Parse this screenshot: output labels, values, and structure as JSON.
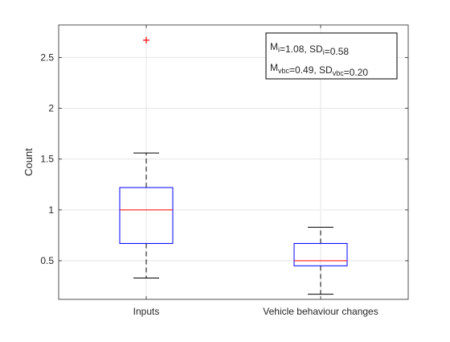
{
  "chart_data": {
    "type": "boxplot",
    "title": "",
    "xlabel": "",
    "ylabel": "Count",
    "ylim": [
      0.12,
      2.82
    ],
    "yticks": [
      0.5,
      1,
      1.5,
      2,
      2.5
    ],
    "ytick_labels": [
      "0.5",
      "1",
      "1.5",
      "2",
      "2.5"
    ],
    "grid": true,
    "categories": [
      "Inputs",
      "Vehicle behaviour changes"
    ],
    "boxes": [
      {
        "min": 0.33,
        "q1": 0.67,
        "median": 1.0,
        "q3": 1.22,
        "max": 1.56,
        "outliers": [
          2.67
        ]
      },
      {
        "min": 0.17,
        "q1": 0.45,
        "median": 0.5,
        "q3": 0.67,
        "max": 0.83,
        "outliers": []
      }
    ],
    "annotation": {
      "position": "top-right",
      "lines": [
        [
          {
            "text": "M",
            "sub": false
          },
          {
            "text": "i",
            "sub": true
          },
          {
            "text": "=1.08, SD",
            "sub": false
          },
          {
            "text": "i",
            "sub": true
          },
          {
            "text": "=0.58",
            "sub": false
          }
        ],
        [
          {
            "text": "M",
            "sub": false
          },
          {
            "text": "vbc",
            "sub": true
          },
          {
            "text": "=0.49, SD",
            "sub": false
          },
          {
            "text": "vbc",
            "sub": true
          },
          {
            "text": "=0.20",
            "sub": false
          }
        ]
      ]
    },
    "colors": {
      "box": "#0000ff",
      "median": "#ff0000",
      "outlier": "#ff0000",
      "whisker": "#000000",
      "grid": "#e6e6e6",
      "axis": "#262626"
    }
  }
}
